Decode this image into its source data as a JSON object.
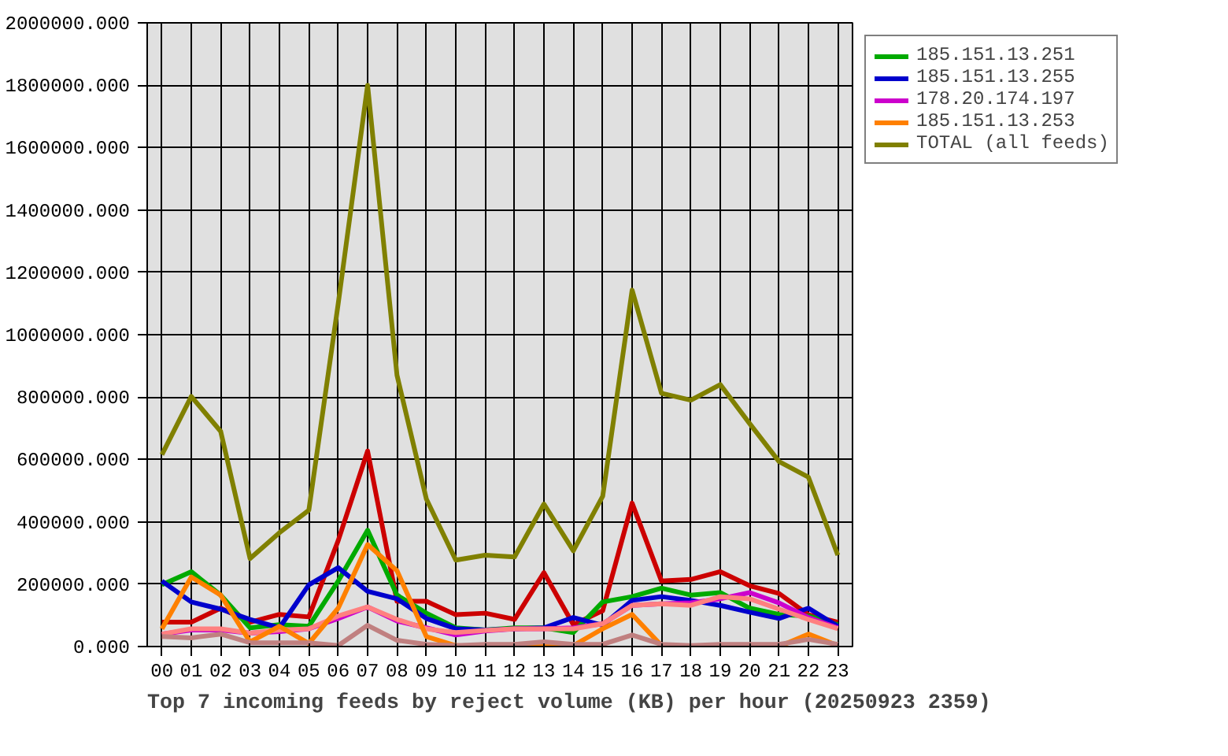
{
  "chart_data": {
    "type": "line",
    "title": "Top 7 incoming feeds by reject volume (KB) per hour (20250923 2359)",
    "categories": [
      "00",
      "01",
      "02",
      "03",
      "04",
      "05",
      "06",
      "07",
      "08",
      "09",
      "10",
      "11",
      "12",
      "13",
      "14",
      "15",
      "16",
      "17",
      "18",
      "19",
      "20",
      "21",
      "22",
      "23"
    ],
    "ylim": [
      0,
      2000000
    ],
    "yticks": [
      {
        "value": 0,
        "label": "0.000"
      },
      {
        "value": 200000,
        "label": "200000.000"
      },
      {
        "value": 400000,
        "label": "400000.000"
      },
      {
        "value": 600000,
        "label": "600000.000"
      },
      {
        "value": 800000,
        "label": "800000.000"
      },
      {
        "value": 1000000,
        "label": "1000000.000"
      },
      {
        "value": 1200000,
        "label": "1200000.000"
      },
      {
        "value": 1400000,
        "label": "1400000.000"
      },
      {
        "value": 1600000,
        "label": "1600000.000"
      },
      {
        "value": 1800000,
        "label": "1800000.000"
      },
      {
        "value": 2000000,
        "label": "2000000.000"
      }
    ],
    "grid": true,
    "legend": "right",
    "series": [
      {
        "color": "#cc0000",
        "values": [
          78000,
          78000,
          123000,
          78000,
          103000,
          95000,
          340000,
          627000,
          145000,
          145000,
          102000,
          107000,
          87000,
          237000,
          70000,
          115000,
          460000,
          210000,
          215000,
          240000,
          195000,
          170000,
          102000,
          78000
        ]
      },
      {
        "name": "185.151.13.251",
        "color": "#00aa00",
        "values": [
          198000,
          240000,
          165000,
          60000,
          70000,
          65000,
          210000,
          373000,
          165000,
          107000,
          60000,
          53000,
          60000,
          60000,
          45000,
          143000,
          160000,
          187000,
          165000,
          173000,
          123000,
          103000,
          98000,
          70000
        ]
      },
      {
        "name": "185.151.13.255",
        "color": "#0000cc",
        "values": [
          210000,
          143000,
          120000,
          87000,
          60000,
          198000,
          253000,
          177000,
          153000,
          90000,
          57000,
          53000,
          57000,
          60000,
          93000,
          68000,
          148000,
          160000,
          148000,
          132000,
          110000,
          90000,
          123000,
          65000
        ]
      },
      {
        "name": "178.20.174.197",
        "color": "#cc00cc",
        "values": [
          40000,
          53000,
          53000,
          43000,
          48000,
          57000,
          90000,
          127000,
          82000,
          60000,
          37000,
          50000,
          57000,
          57000,
          60000,
          73000,
          132000,
          137000,
          140000,
          153000,
          173000,
          140000,
          93000,
          60000
        ]
      },
      {
        "color": "#ff8080",
        "values": [
          40000,
          57000,
          57000,
          43000,
          53000,
          57000,
          98000,
          127000,
          87000,
          57000,
          45000,
          52000,
          57000,
          57000,
          57000,
          73000,
          132000,
          137000,
          132000,
          160000,
          153000,
          120000,
          87000,
          57000
        ]
      },
      {
        "name": "185.151.13.253",
        "color": "#ff8000",
        "values": [
          57000,
          223000,
          165000,
          15000,
          65000,
          10000,
          123000,
          327000,
          243000,
          32000,
          3000,
          0,
          0,
          0,
          3000,
          57000,
          103000,
          3000,
          0,
          0,
          0,
          0,
          40000,
          3000
        ]
      },
      {
        "color": "#c08080",
        "values": [
          32000,
          28000,
          40000,
          12000,
          12000,
          12000,
          3000,
          68000,
          20000,
          7000,
          3000,
          7000,
          7000,
          15000,
          7000,
          7000,
          37000,
          7000,
          3000,
          7000,
          7000,
          7000,
          23000,
          7000
        ]
      },
      {
        "name": "TOTAL (all feeds)",
        "color": "#808000",
        "values": [
          615000,
          802000,
          690000,
          282000,
          365000,
          437000,
          1100000,
          1800000,
          870000,
          473000,
          277000,
          293000,
          287000,
          457000,
          307000,
          482000,
          1143000,
          812000,
          790000,
          840000,
          715000,
          593000,
          543000,
          293000
        ]
      }
    ]
  }
}
